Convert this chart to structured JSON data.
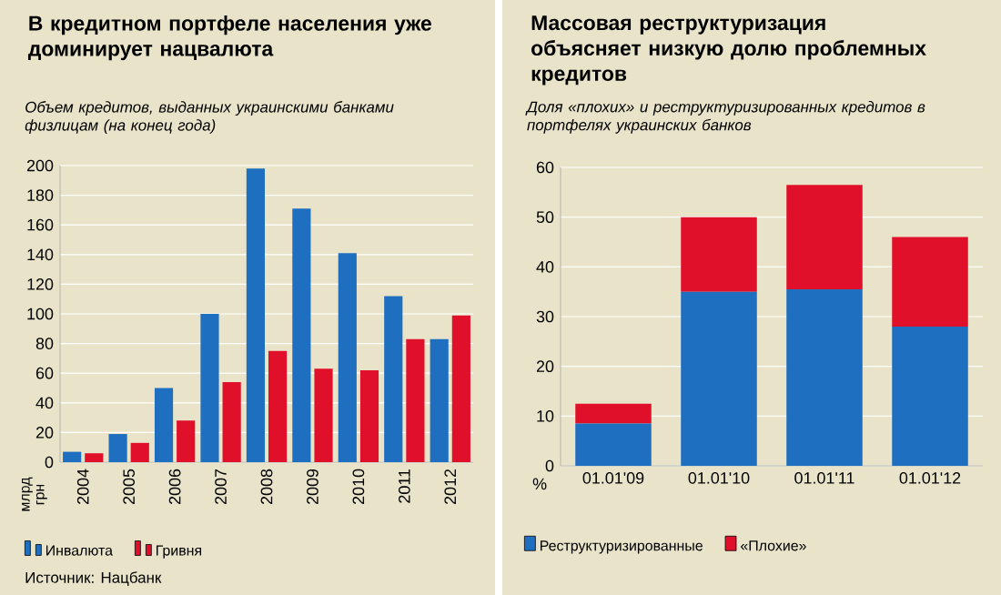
{
  "chart_data": [
    {
      "type": "bar",
      "title": "В кредитном портфеле населения уже доминирует нацвалюта",
      "subtitle": "Объем кредитов, выданных украинскими банками физлицам (на конец года)",
      "ylabel": "млрд грн",
      "categories": [
        "2004",
        "2005",
        "2006",
        "2007",
        "2008",
        "2009",
        "2010",
        "2011",
        "2012"
      ],
      "series": [
        {
          "name": "Инвалюта",
          "color": "#1f6fc0",
          "values": [
            7,
            19,
            50,
            100,
            198,
            171,
            141,
            112,
            83
          ]
        },
        {
          "name": "Гривня",
          "color": "#e0102a",
          "values": [
            6,
            13,
            28,
            54,
            75,
            63,
            62,
            83,
            99
          ]
        }
      ],
      "ylim": [
        0,
        200
      ],
      "yticks": [
        0,
        20,
        40,
        60,
        80,
        100,
        120,
        140,
        160,
        180,
        200
      ],
      "grid": "y",
      "legend": "bottom",
      "annotations": [
        "Источник: Нацбанк"
      ]
    },
    {
      "type": "bar",
      "title": "Массовая реструктуризация объясняет низкую долю проблемных кредитов",
      "subtitle": "Доля «плохих» и реструктуризированных кредитов в портфелях украинских банков",
      "ylabel": "%",
      "categories": [
        "01.01'09",
        "01.01'10",
        "01.01'11",
        "01.01'12"
      ],
      "stacked": true,
      "series": [
        {
          "name": "Реструктуризированные",
          "color": "#1f6fc0",
          "values": [
            8.5,
            35,
            35.5,
            28
          ]
        },
        {
          "name": "«Плохие»",
          "color": "#e0102a",
          "values": [
            4,
            15,
            21,
            18
          ]
        }
      ],
      "ylim": [
        0,
        60
      ],
      "yticks": [
        0,
        10,
        20,
        30,
        40,
        50,
        60
      ],
      "grid": "y",
      "legend": "bottom"
    }
  ]
}
